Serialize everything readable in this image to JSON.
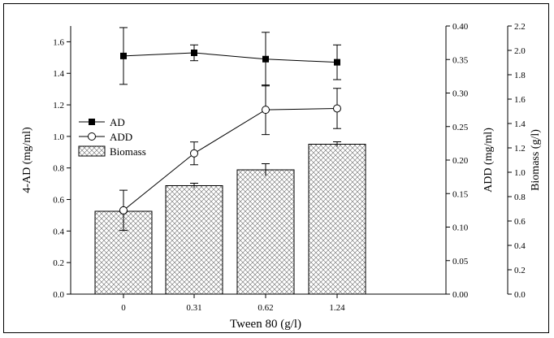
{
  "chart_data": {
    "type": "bar",
    "xlabel": "Tween 80 (g/l)",
    "categories": [
      "0",
      "0.31",
      "0.62",
      "1.24"
    ],
    "axes": {
      "left": {
        "label": "4-AD (mg/ml)",
        "ylim": [
          0,
          1.7
        ],
        "ticks": [
          "0.0",
          "0.2",
          "0.4",
          "0.6",
          "0.8",
          "1.0",
          "1.2",
          "1.4",
          "1.6"
        ]
      },
      "right1": {
        "label": "ADD (mg/ml)",
        "ylim": [
          0,
          0.4
        ],
        "ticks": [
          "0.00",
          "0.05",
          "0.10",
          "0.15",
          "0.20",
          "0.25",
          "0.30",
          "0.35",
          "0.40"
        ]
      },
      "right2": {
        "label": "Biomass (g/l)",
        "ylim": [
          0,
          2.2
        ],
        "ticks": [
          "0.0",
          "0.2",
          "0.4",
          "0.6",
          "0.8",
          "1.0",
          "1.2",
          "1.4",
          "1.6",
          "1.8",
          "2.0",
          "2.2"
        ]
      }
    },
    "series": [
      {
        "name": "AD",
        "kind": "line-square",
        "axis": "left",
        "values": [
          1.51,
          1.53,
          1.49,
          1.47
        ],
        "errors": [
          0.18,
          0.05,
          0.17,
          0.11
        ]
      },
      {
        "name": "ADD",
        "kind": "line-circle",
        "axis": "right1",
        "values": [
          0.125,
          0.21,
          0.275,
          0.277
        ],
        "errors": [
          0.03,
          0.017,
          0.037,
          0.03
        ]
      },
      {
        "name": "Biomass",
        "kind": "bar-hatch",
        "axis": "right2",
        "values": [
          0.68,
          0.89,
          1.02,
          1.23
        ],
        "errors": [
          0.0,
          0.02,
          0.05,
          0.02
        ]
      }
    ],
    "legend_position": "left-middle",
    "colors": {
      "ink": "#000000",
      "bar_fill": "#ffffff",
      "hatch": "#555555"
    }
  }
}
